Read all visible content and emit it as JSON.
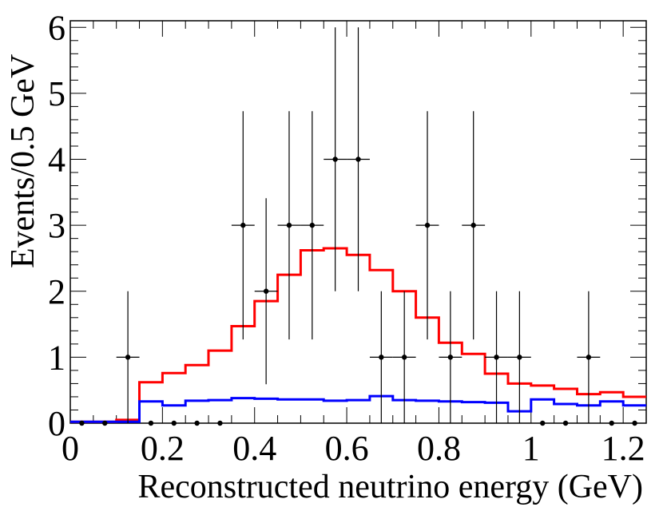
{
  "chart_data": {
    "type": "histogram",
    "title": "",
    "xlabel": "Reconstructed neutrino energy (GeV)",
    "ylabel": "Events/0.5 GeV",
    "xlim": [
      0,
      1.25
    ],
    "ylim": [
      0,
      6.1
    ],
    "x_ticks": [
      0,
      0.2,
      0.4,
      0.6,
      0.8,
      1,
      1.2
    ],
    "x_tick_labels": [
      "0",
      "0.2",
      "0.4",
      "0.6",
      "0.8",
      "1",
      "1.2"
    ],
    "y_ticks": [
      0,
      1,
      2,
      3,
      4,
      5,
      6
    ],
    "y_tick_labels": [
      "0",
      "1",
      "2",
      "3",
      "4",
      "5",
      "6"
    ],
    "bin_edges": [
      0,
      0.05,
      0.1,
      0.15,
      0.2,
      0.25,
      0.3,
      0.35,
      0.4,
      0.45,
      0.5,
      0.55,
      0.6,
      0.65,
      0.7,
      0.75,
      0.8,
      0.85,
      0.9,
      0.95,
      1.0,
      1.05,
      1.1,
      1.15,
      1.2,
      1.25
    ],
    "series": [
      {
        "name": "red histogram",
        "color": "#ff0000",
        "values": [
          0.02,
          0.02,
          0.05,
          0.62,
          0.76,
          0.88,
          1.1,
          1.47,
          1.85,
          2.25,
          2.62,
          2.65,
          2.55,
          2.32,
          2.0,
          1.6,
          1.22,
          1.05,
          0.75,
          0.6,
          0.57,
          0.52,
          0.44,
          0.47,
          0.4
        ]
      },
      {
        "name": "blue histogram",
        "color": "#0000ff",
        "values": [
          0.02,
          0.02,
          0.02,
          0.33,
          0.27,
          0.34,
          0.35,
          0.38,
          0.37,
          0.36,
          0.36,
          0.34,
          0.35,
          0.41,
          0.35,
          0.34,
          0.33,
          0.32,
          0.31,
          0.18,
          0.36,
          0.29,
          0.27,
          0.33,
          0.27
        ]
      },
      {
        "name": "data points",
        "color": "#000000",
        "bin_width": 0.05,
        "x": [
          0.025,
          0.075,
          0.125,
          0.175,
          0.225,
          0.275,
          0.325,
          0.375,
          0.425,
          0.475,
          0.525,
          0.575,
          0.625,
          0.675,
          0.725,
          0.775,
          0.825,
          0.875,
          0.925,
          0.975,
          1.025,
          1.075,
          1.125,
          1.175,
          1.225
        ],
        "y": [
          0,
          0,
          1,
          0,
          0,
          0,
          0,
          3,
          2,
          3,
          3,
          4,
          4,
          1,
          1,
          3,
          1,
          3,
          1,
          1,
          0,
          0,
          1,
          0,
          0
        ],
        "err_up": [
          0,
          0,
          1,
          0,
          0,
          0,
          0,
          1.73,
          1.41,
          1.73,
          1.73,
          2.0,
          2.0,
          1,
          1,
          1.73,
          1,
          1.73,
          1,
          1,
          0,
          0,
          1,
          0,
          0
        ],
        "err_down": [
          0,
          0,
          1,
          0,
          0,
          0,
          0,
          1.73,
          1.41,
          1.73,
          1.73,
          2.0,
          2.0,
          1,
          1,
          1.73,
          1,
          1.73,
          1,
          1,
          0,
          0,
          1,
          0,
          0
        ]
      }
    ]
  }
}
